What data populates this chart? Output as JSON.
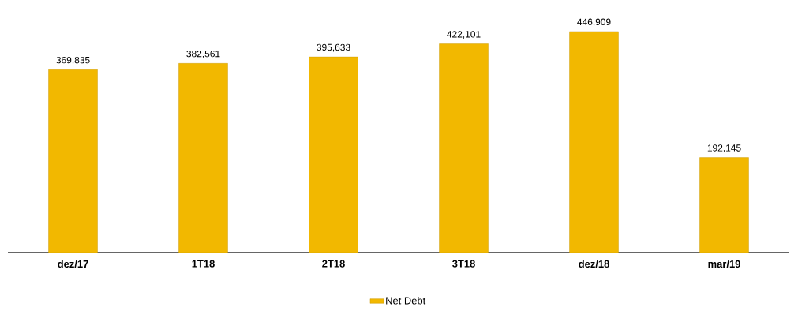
{
  "chart_data": {
    "type": "bar",
    "categories": [
      "dez/17",
      "1T18",
      "2T18",
      "3T18",
      "dez/18",
      "mar/19"
    ],
    "series": [
      {
        "name": "Net Debt",
        "color": "#f2b800",
        "values": [
          369835,
          382561,
          395633,
          422101,
          446909,
          192145
        ],
        "value_labels": [
          "369,835",
          "382,561",
          "395,633",
          "422,101",
          "446,909",
          "192,145"
        ]
      }
    ],
    "legend": "bottom"
  }
}
